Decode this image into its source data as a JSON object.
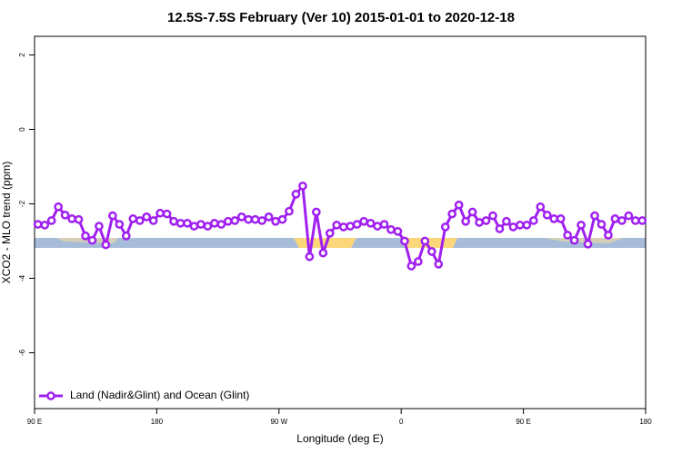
{
  "chart_data": {
    "type": "line",
    "title": "12.5S-7.5S February (Ver 10)   2015-01-01 to 2020-12-18",
    "x_label": "Longitude (deg E)",
    "y_label": "XCO2 - MLO trend (ppm)",
    "xlim": [
      90,
      540
    ],
    "xticks": [
      {
        "value": 90,
        "label": "90 E"
      },
      {
        "value": 180,
        "label": "180"
      },
      {
        "value": 270,
        "label": "90 W"
      },
      {
        "value": 360,
        "label": "0"
      },
      {
        "value": 450,
        "label": "90 E"
      },
      {
        "value": 540,
        "label": "180"
      }
    ],
    "ylim": [
      -7.5,
      2.5
    ],
    "yticks": [
      -6,
      -4,
      -2,
      0,
      2
    ],
    "legend_position": "bottomleft",
    "x": [
      92.5,
      97.5,
      102.5,
      107.5,
      112.5,
      117.5,
      122.5,
      127.5,
      132.5,
      137.5,
      142.5,
      147.5,
      152.5,
      157.5,
      162.5,
      167.5,
      172.5,
      177.5,
      182.5,
      187.5,
      192.5,
      197.5,
      202.5,
      207.5,
      212.5,
      217.5,
      222.5,
      227.5,
      232.5,
      237.5,
      242.5,
      247.5,
      252.5,
      257.5,
      262.5,
      267.5,
      272.5,
      277.5,
      282.5,
      287.5,
      292.5,
      297.5,
      302.5,
      307.5,
      312.5,
      317.5,
      322.5,
      327.5,
      332.5,
      337.5,
      342.5,
      347.5,
      352.5,
      357.5,
      362.5,
      367.5,
      372.5,
      377.5,
      382.5,
      387.5,
      392.5,
      397.5,
      402.5,
      407.5,
      412.5,
      417.5,
      422.5,
      427.5,
      432.5,
      437.5,
      442.5,
      447.5,
      452.5,
      457.5,
      462.5,
      467.5,
      472.5,
      477.5,
      482.5,
      487.5,
      492.5,
      497.5,
      502.5,
      507.5,
      512.5,
      517.5,
      522.5,
      527.5,
      532.5,
      537.5
    ],
    "series": [
      {
        "name": "Land (Nadir&Glint) and Ocean (Glint)",
        "color": "#a020f0",
        "values": [
          -2.55,
          -2.57,
          -2.45,
          -2.08,
          -2.3,
          -2.4,
          -2.42,
          -2.86,
          -2.98,
          -2.6,
          -3.1,
          -2.32,
          -2.55,
          -2.86,
          -2.4,
          -2.45,
          -2.35,
          -2.45,
          -2.25,
          -2.27,
          -2.47,
          -2.52,
          -2.52,
          -2.6,
          -2.55,
          -2.6,
          -2.52,
          -2.55,
          -2.47,
          -2.45,
          -2.35,
          -2.42,
          -2.42,
          -2.45,
          -2.35,
          -2.47,
          -2.42,
          -2.2,
          -1.74,
          -1.52,
          -3.42,
          -2.22,
          -3.32,
          -2.79,
          -2.57,
          -2.62,
          -2.6,
          -2.55,
          -2.47,
          -2.52,
          -2.6,
          -2.55,
          -2.69,
          -2.74,
          -3.0,
          -3.67,
          -3.55,
          -3.0,
          -3.28,
          -3.62,
          -2.62,
          -2.27,
          -2.03,
          -2.47,
          -2.22,
          -2.5,
          -2.45,
          -2.32,
          -2.67,
          -2.47,
          -2.62,
          -2.57,
          -2.57,
          -2.45,
          -2.08,
          -2.3,
          -2.4,
          -2.4,
          -2.84,
          -2.98,
          -2.57,
          -3.08,
          -2.32,
          -2.55,
          -2.84,
          -2.4,
          -2.45,
          -2.32,
          -2.45,
          -2.45
        ]
      }
    ]
  }
}
